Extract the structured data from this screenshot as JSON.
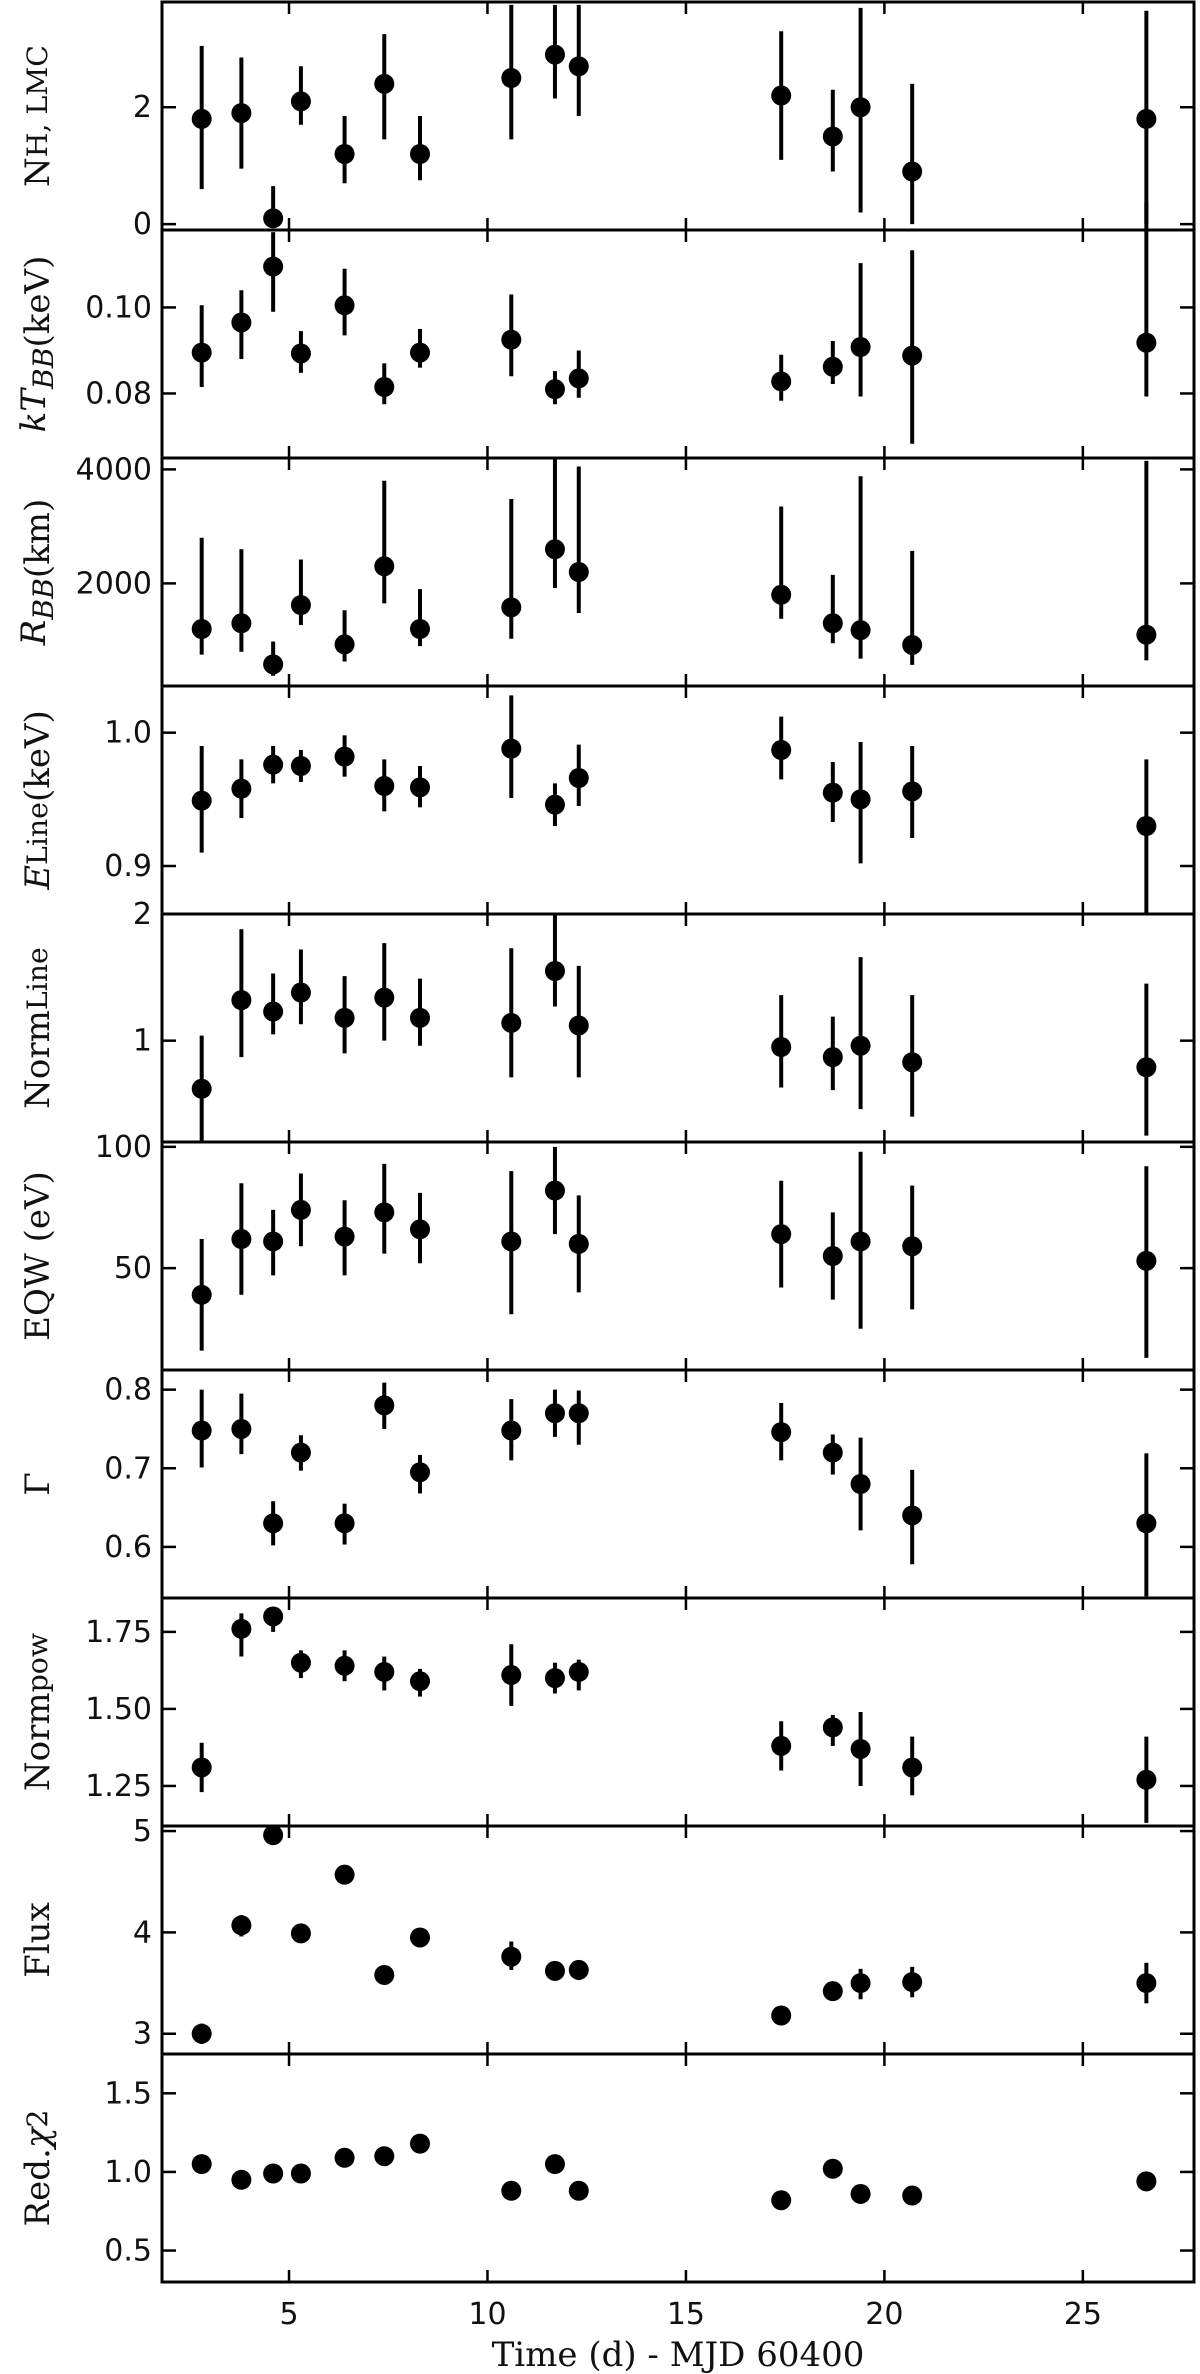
{
  "chart_data": {
    "type": "scatter",
    "x": [
      2.8,
      3.8,
      4.6,
      5.3,
      6.4,
      7.4,
      8.3,
      10.6,
      11.7,
      12.3,
      17.4,
      18.7,
      19.4,
      20.7,
      26.6
    ],
    "xlim": [
      1.8,
      27.8
    ],
    "xticks": [
      5,
      10,
      15,
      20,
      25
    ],
    "xlabel": "Time (d) - MJD 60400",
    "marker_color": "#000000",
    "panels": [
      {
        "key": "nh",
        "ylabel_html": "N<sub>H, LMC</sub>",
        "ylim": [
          -0.1,
          3.8
        ],
        "yticks": [
          0,
          2
        ],
        "ytick_labels": [
          "0",
          "2"
        ],
        "values": [
          1.8,
          1.9,
          0.1,
          2.1,
          1.2,
          2.4,
          1.2,
          2.5,
          2.9,
          2.7,
          2.2,
          1.5,
          2.0,
          0.9,
          1.8
        ],
        "err_low": [
          1.2,
          0.95,
          0.15,
          0.4,
          0.5,
          0.95,
          0.45,
          1.05,
          0.75,
          0.85,
          1.1,
          0.6,
          1.8,
          0.9,
          1.8
        ],
        "err_high": [
          1.25,
          0.95,
          0.55,
          0.6,
          0.65,
          0.85,
          0.65,
          1.25,
          0.85,
          1.05,
          1.1,
          0.8,
          1.7,
          1.5,
          1.85
        ]
      },
      {
        "key": "ktbb",
        "ylabel_html": "<i>kT<sub>BB</sub></i> (keV)",
        "ylim": [
          0.065,
          0.118
        ],
        "yticks": [
          0.08,
          0.1
        ],
        "ytick_labels": [
          "0.08",
          "0.10"
        ],
        "values": [
          0.0895,
          0.0965,
          0.1095,
          0.0893,
          0.1005,
          0.0815,
          0.0895,
          0.0925,
          0.081,
          0.0835,
          0.0828,
          0.0862,
          0.0908,
          0.0888,
          0.0918
        ],
        "err_low": [
          0.008,
          0.0085,
          0.0105,
          0.0045,
          0.007,
          0.004,
          0.0035,
          0.0085,
          0.0035,
          0.0045,
          0.0045,
          0.004,
          0.0115,
          0.0205,
          0.0125
        ],
        "err_high": [
          0.011,
          0.0075,
          0.008,
          0.0052,
          0.0085,
          0.0055,
          0.0055,
          0.0105,
          0.0042,
          0.0065,
          0.0062,
          0.006,
          0.0195,
          0.0245,
          0.0325
        ]
      },
      {
        "key": "rbb",
        "ylabel_html": "<i>R<sub>BB</sub></i> (km)",
        "ylim": [
          200,
          4200
        ],
        "yticks": [
          2000,
          4000
        ],
        "ytick_labels": [
          "2000",
          "4000"
        ],
        "values": [
          1200,
          1300,
          580,
          1620,
          930,
          2300,
          1200,
          1580,
          2600,
          2200,
          1800,
          1300,
          1180,
          920,
          1100
        ],
        "err_low": [
          450,
          500,
          200,
          350,
          300,
          650,
          300,
          550,
          680,
          720,
          420,
          350,
          500,
          350,
          450
        ],
        "err_high": [
          1600,
          1300,
          400,
          800,
          600,
          1500,
          700,
          1900,
          1600,
          1850,
          1550,
          850,
          2700,
          1650,
          3050
        ]
      },
      {
        "key": "eline",
        "ylabel_html": "<i>E</i><sub>Line</sub> (keV)",
        "ylim": [
          0.864,
          1.035
        ],
        "yticks": [
          0.9,
          1.0
        ],
        "ytick_labels": [
          "0.9",
          "1.0"
        ],
        "values": [
          0.949,
          0.958,
          0.976,
          0.975,
          0.982,
          0.96,
          0.959,
          0.988,
          0.946,
          0.966,
          0.987,
          0.955,
          0.95,
          0.956,
          0.93
        ],
        "err_low": [
          0.039,
          0.022,
          0.014,
          0.012,
          0.015,
          0.019,
          0.015,
          0.037,
          0.016,
          0.021,
          0.022,
          0.022,
          0.048,
          0.035,
          0.066
        ],
        "err_high": [
          0.041,
          0.022,
          0.014,
          0.012,
          0.016,
          0.02,
          0.016,
          0.04,
          0.016,
          0.025,
          0.025,
          0.023,
          0.043,
          0.034,
          0.05
        ]
      },
      {
        "key": "normline",
        "ylabel_html": "Norm<sub>Line</sub>",
        "ylim": [
          0.2,
          2.0
        ],
        "yticks": [
          1,
          2
        ],
        "ytick_labels": [
          "1",
          "2"
        ],
        "values": [
          0.62,
          1.32,
          1.23,
          1.38,
          1.18,
          1.34,
          1.18,
          1.14,
          1.55,
          1.12,
          0.95,
          0.87,
          0.96,
          0.83,
          0.79
        ],
        "err_low": [
          0.42,
          0.45,
          0.18,
          0.25,
          0.28,
          0.34,
          0.22,
          0.43,
          0.28,
          0.41,
          0.32,
          0.26,
          0.5,
          0.43,
          0.54
        ],
        "err_high": [
          0.42,
          0.56,
          0.3,
          0.34,
          0.33,
          0.43,
          0.31,
          0.59,
          0.45,
          0.47,
          0.41,
          0.32,
          0.7,
          0.53,
          0.66
        ]
      },
      {
        "key": "eqw",
        "ylabel_html": "EQW (eV)",
        "ylim": [
          8,
          102
        ],
        "yticks": [
          50,
          100
        ],
        "ytick_labels": [
          "50",
          "100"
        ],
        "values": [
          39,
          62,
          61,
          74,
          63,
          73,
          66,
          61,
          82,
          60,
          64,
          55,
          61,
          59,
          53
        ],
        "err_low": [
          23,
          23,
          14,
          15,
          16,
          17,
          14,
          30,
          18,
          20,
          22,
          18,
          36,
          26,
          40
        ],
        "err_high": [
          23,
          23,
          13,
          15,
          15,
          20,
          15,
          29,
          18,
          20,
          22,
          18,
          37,
          25,
          39
        ]
      },
      {
        "key": "gamma",
        "ylabel_html": "Γ",
        "ylim": [
          0.535,
          0.825
        ],
        "yticks": [
          0.6,
          0.7,
          0.8
        ],
        "ytick_labels": [
          "0.6",
          "0.7",
          "0.8"
        ],
        "values": [
          0.748,
          0.75,
          0.63,
          0.72,
          0.63,
          0.78,
          0.695,
          0.748,
          0.77,
          0.77,
          0.746,
          0.72,
          0.68,
          0.64,
          0.63
        ],
        "err_low": [
          0.047,
          0.032,
          0.028,
          0.023,
          0.027,
          0.03,
          0.027,
          0.038,
          0.03,
          0.04,
          0.036,
          0.028,
          0.059,
          0.062,
          0.093
        ],
        "err_high": [
          0.052,
          0.045,
          0.028,
          0.022,
          0.025,
          0.029,
          0.022,
          0.04,
          0.03,
          0.029,
          0.037,
          0.023,
          0.059,
          0.058,
          0.089
        ]
      },
      {
        "key": "normpow",
        "ylabel_html": "Norm<sub>pow</sub>",
        "ylim": [
          1.12,
          1.86
        ],
        "yticks": [
          1.25,
          1.5,
          1.75
        ],
        "ytick_labels": [
          "1.25",
          "1.50",
          "1.75"
        ],
        "values": [
          1.31,
          1.76,
          1.8,
          1.65,
          1.64,
          1.62,
          1.59,
          1.61,
          1.6,
          1.62,
          1.38,
          1.44,
          1.37,
          1.31,
          1.27
        ],
        "err_low": [
          0.08,
          0.09,
          0.05,
          0.05,
          0.05,
          0.06,
          0.05,
          0.1,
          0.05,
          0.06,
          0.08,
          0.06,
          0.12,
          0.09,
          0.14
        ],
        "err_high": [
          0.08,
          0.05,
          0.03,
          0.04,
          0.05,
          0.05,
          0.04,
          0.1,
          0.05,
          0.04,
          0.08,
          0.04,
          0.12,
          0.1,
          0.14
        ]
      },
      {
        "key": "flux",
        "ylabel_html": "Flux",
        "ylim": [
          2.8,
          5.05
        ],
        "yticks": [
          3,
          4,
          5
        ],
        "ytick_labels": [
          "3",
          "4",
          "5"
        ],
        "values": [
          3.0,
          4.07,
          4.96,
          3.99,
          4.57,
          3.58,
          3.95,
          3.76,
          3.62,
          3.63,
          3.18,
          3.42,
          3.5,
          3.51,
          3.5
        ],
        "err_low": [
          0.1,
          0.11,
          0.05,
          0.06,
          0.06,
          0.04,
          0.05,
          0.13,
          0.07,
          0.1,
          0.08,
          0.06,
          0.16,
          0.15,
          0.2
        ],
        "err_high": [
          0.1,
          0.1,
          0.05,
          0.06,
          0.06,
          0.04,
          0.06,
          0.15,
          0.07,
          0.09,
          0.08,
          0.06,
          0.14,
          0.15,
          0.2
        ]
      },
      {
        "key": "redchi2",
        "ylabel_html": "Red. <i>χ</i><sup>2</sup>",
        "ylim": [
          0.3,
          1.75
        ],
        "yticks": [
          0.5,
          1.0,
          1.5
        ],
        "ytick_labels": [
          "0.5",
          "1.0",
          "1.5"
        ],
        "values": [
          1.05,
          0.95,
          0.99,
          0.99,
          1.09,
          1.1,
          1.18,
          0.88,
          1.05,
          0.88,
          0.82,
          1.02,
          0.86,
          0.85,
          0.94
        ],
        "err_low": [
          0,
          0,
          0,
          0,
          0,
          0,
          0,
          0,
          0,
          0,
          0,
          0,
          0,
          0,
          0
        ],
        "err_high": [
          0,
          0,
          0,
          0,
          0,
          0,
          0,
          0,
          0,
          0,
          0,
          0,
          0,
          0,
          0
        ]
      }
    ]
  }
}
